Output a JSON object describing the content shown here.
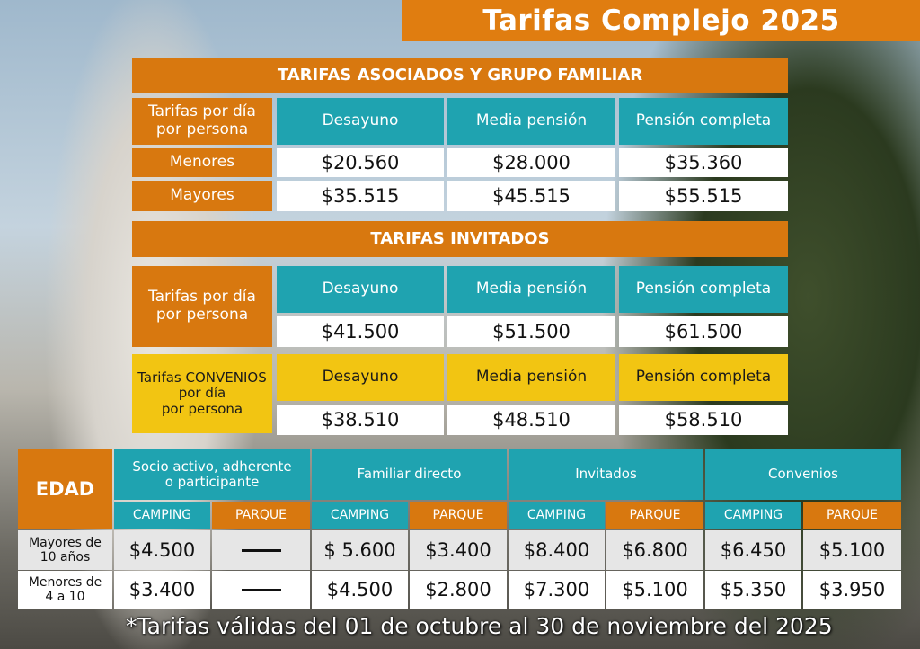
{
  "title": "Tarifas Complejo 2025",
  "asociados": {
    "heading": "TARIFAS ASOCIADOS Y GRUPO FAMILIAR",
    "row_label": "Tarifas por día por persona",
    "columns": [
      "Desayuno",
      "Media pensión",
      "Pensión completa"
    ],
    "rows": [
      {
        "label": "Menores",
        "values": [
          "$20.560",
          "$28.000",
          "$35.360"
        ]
      },
      {
        "label": "Mayores",
        "values": [
          "$35.515",
          "$45.515",
          "$55.515"
        ]
      }
    ]
  },
  "invitados": {
    "heading": "TARIFAS INVITADOS",
    "row_label": "Tarifas  por día por persona",
    "columns": [
      "Desayuno",
      "Media pensión",
      "Pensión completa"
    ],
    "values": [
      "$41.500",
      "$51.500",
      "$61.500"
    ]
  },
  "convenios": {
    "row_label_1": "Tarifas CONVENIOS",
    "row_label_2": "por día",
    "row_label_3": "por persona",
    "columns": [
      "Desayuno",
      "Media pensión",
      "Pensión completa"
    ],
    "values": [
      "$38.510",
      "$48.510",
      "$58.510"
    ]
  },
  "edad_table": {
    "edad_label": "EDAD",
    "groups": [
      "Socio activo, adherente o participante",
      "Familiar directo",
      "Invitados",
      "Convenios"
    ],
    "subheaders": [
      "CAMPING",
      "PARQUE"
    ],
    "rows": [
      {
        "label": "Mayores de 10 años",
        "values": [
          "$4.500",
          "—",
          "$ 5.600",
          "$3.400",
          "$8.400",
          "$6.800",
          "$6.450",
          "$5.100"
        ]
      },
      {
        "label": "Menores de 4 a 10",
        "values": [
          "$3.400",
          "—",
          "$4.500",
          "$2.800",
          "$7.300",
          "$5.100",
          "$5.350",
          "$3.950"
        ]
      }
    ]
  },
  "footnote": "*Tarifas válidas del 01 de octubre al 30 de noviembre del 2025",
  "colors": {
    "orange": "#d8780f",
    "teal": "#1fa3b0",
    "yellow": "#f2c512"
  }
}
